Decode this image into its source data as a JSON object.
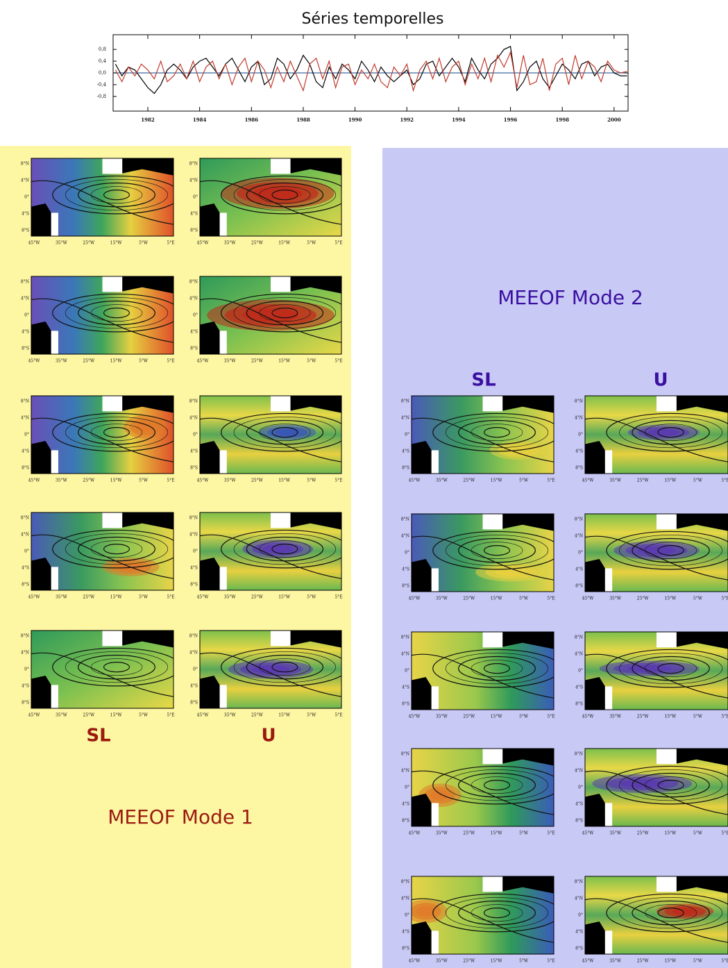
{
  "chart_data": {
    "type": "line",
    "title": "Séries temporelles",
    "x": [
      1980.75,
      1981,
      1981.25,
      1981.5,
      1981.75,
      1982,
      1982.25,
      1982.5,
      1982.75,
      1983,
      1983.25,
      1983.5,
      1983.75,
      1984,
      1984.25,
      1984.5,
      1984.75,
      1985,
      1985.25,
      1985.5,
      1985.75,
      1986,
      1986.25,
      1986.5,
      1986.75,
      1987,
      1987.25,
      1987.5,
      1987.75,
      1988,
      1988.25,
      1988.5,
      1988.75,
      1989,
      1989.25,
      1989.5,
      1989.75,
      1990,
      1990.25,
      1990.5,
      1990.75,
      1991,
      1991.25,
      1991.5,
      1991.75,
      1992,
      1992.25,
      1992.5,
      1992.75,
      1993,
      1993.25,
      1993.5,
      1993.75,
      1994,
      1994.25,
      1994.5,
      1994.75,
      1995,
      1995.25,
      1995.5,
      1995.75,
      1996,
      1996.25,
      1996.5,
      1996.75,
      1997,
      1997.25,
      1997.5,
      1997.75,
      1998,
      1998.25,
      1998.5,
      1998.75,
      1999,
      1999.25,
      1999.5,
      1999.75,
      2000,
      2000.25,
      2000.5
    ],
    "series": [
      {
        "color": "#000000",
        "values": [
          0.3,
          -0.1,
          0.2,
          0.1,
          -0.2,
          -0.5,
          -0.7,
          -0.4,
          0.1,
          0.3,
          0.1,
          -0.2,
          0.2,
          0.4,
          0.5,
          0.2,
          -0.1,
          0.3,
          0.5,
          0.1,
          -0.3,
          0.2,
          0.4,
          -0.4,
          -0.2,
          0.5,
          0.3,
          -0.2,
          0.1,
          0.6,
          0.3,
          -0.3,
          -0.5,
          0.2,
          -0.2,
          0.3,
          0.1,
          -0.2,
          0.4,
          0.1,
          -0.3,
          0.2,
          -0.1,
          -0.3,
          -0.1,
          0.1,
          -0.4,
          -0.2,
          0.3,
          0.4,
          -0.1,
          0.2,
          0.5,
          0.2,
          -0.3,
          0.5,
          0.1,
          -0.2,
          0.3,
          0.5,
          0.8,
          0.9,
          -0.6,
          -0.3,
          0.2,
          0.4,
          -0.2,
          -0.5,
          -0.1,
          0.3,
          0.1,
          -0.2,
          0.3,
          0.4,
          -0.1,
          0.2,
          0.3,
          0.0,
          -0.1,
          -0.1
        ]
      },
      {
        "color": "#c0392b",
        "values": [
          0.1,
          -0.3,
          0.2,
          -0.1,
          0.3,
          0.1,
          -0.2,
          0.4,
          -0.3,
          -0.1,
          0.3,
          -0.2,
          0.4,
          -0.3,
          0.2,
          0.4,
          -0.2,
          0.3,
          -0.4,
          0.2,
          0.5,
          -0.3,
          0.4,
          0.1,
          -0.5,
          0.2,
          -0.3,
          0.4,
          -0.1,
          -0.6,
          0.3,
          0.5,
          -0.2,
          0.4,
          -0.5,
          0.2,
          0.3,
          -0.4,
          0.1,
          -0.2,
          0.3,
          -0.3,
          -0.5,
          0.2,
          -0.1,
          0.3,
          -0.6,
          0.1,
          0.4,
          -0.2,
          0.5,
          -0.3,
          0.2,
          0.4,
          -0.4,
          0.3,
          -0.2,
          0.5,
          -0.3,
          0.6,
          0.2,
          0.7,
          -0.5,
          0.6,
          -0.4,
          -0.3,
          0.5,
          -0.6,
          0.3,
          0.5,
          -0.4,
          0.6,
          -0.2,
          0.4,
          0.2,
          -0.3,
          0.4,
          0.1,
          0.0,
          0.05
        ]
      }
    ],
    "xlim": [
      1980.66,
      2000.54
    ],
    "xticks": [
      1982,
      1984,
      1986,
      1988,
      1990,
      1992,
      1994,
      1996,
      1998,
      2000
    ],
    "ylim": [
      -1.3,
      1.3
    ],
    "yticks": [
      {
        "value": 0.8,
        "label": "0,8"
      },
      {
        "value": 0.4,
        "label": "0,4"
      },
      {
        "value": 0,
        "label": "0,0"
      },
      {
        "value": -0.4,
        "label": "-0,4"
      },
      {
        "value": -0.8,
        "label": "-0,8"
      }
    ]
  },
  "maps": {
    "lat_labels": [
      "8°N",
      "4°N",
      "0°",
      "4°S",
      "8°S"
    ],
    "lon_labels": [
      "45°W",
      "35°W",
      "25°W",
      "15°W",
      "5°W",
      "5°E"
    ]
  },
  "mode1": {
    "title": "MEEOF Mode 1",
    "columns": [
      "SL",
      "U"
    ]
  },
  "mode2": {
    "title": "MEEOF Mode 2",
    "columns": [
      "SL",
      "U"
    ]
  }
}
